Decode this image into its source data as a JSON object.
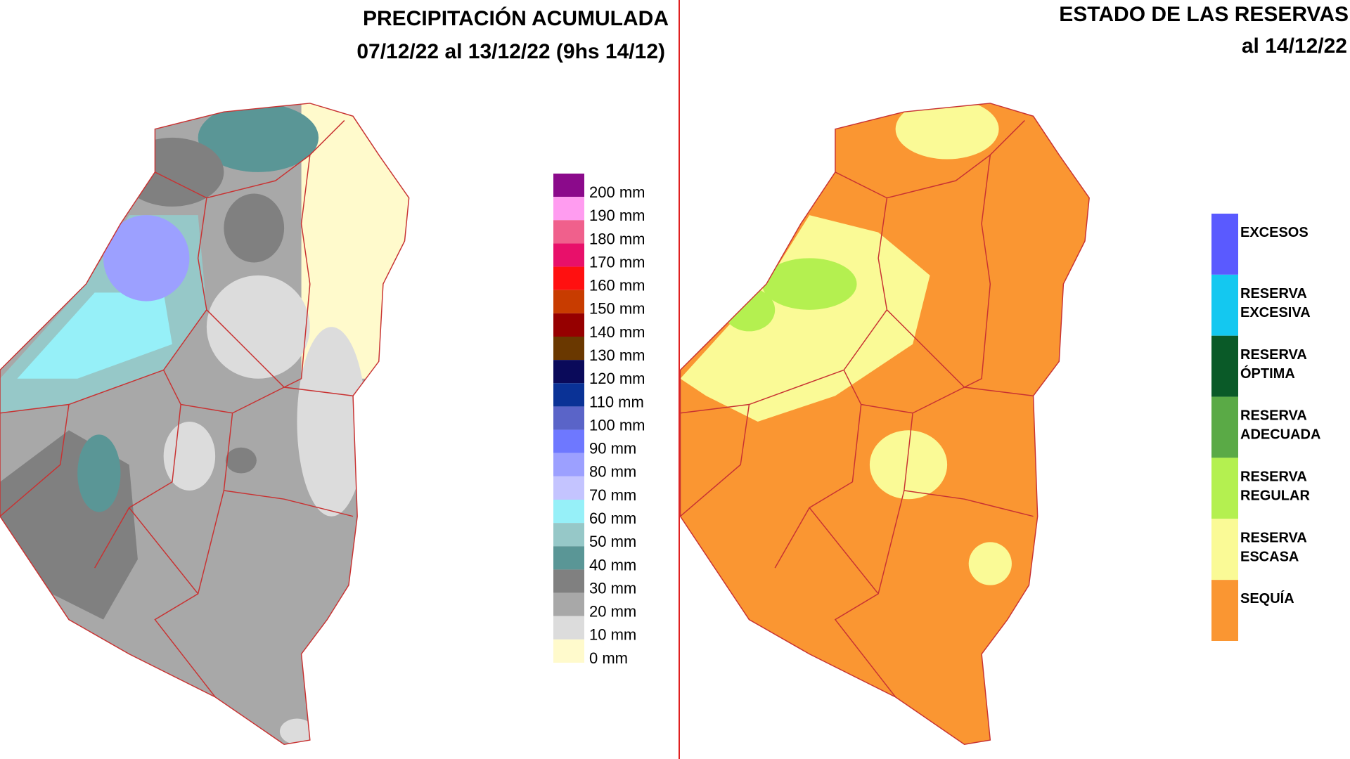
{
  "left": {
    "title": "PRECIPITACIÓN ACUMULADA",
    "subtitle": "07/12/22 al 13/12/22 (9hs 14/12)",
    "legend": [
      {
        "label": "200 mm",
        "color": "#8b0a8b"
      },
      {
        "label": "190 mm",
        "color": "#ff9cf0"
      },
      {
        "label": "180 mm",
        "color": "#f0608c"
      },
      {
        "label": "170 mm",
        "color": "#e8106a"
      },
      {
        "label": "160 mm",
        "color": "#ff1010"
      },
      {
        "label": "150 mm",
        "color": "#c83c00"
      },
      {
        "label": "140 mm",
        "color": "#960000"
      },
      {
        "label": "130 mm",
        "color": "#6a3800"
      },
      {
        "label": "120 mm",
        "color": "#0a0a5a"
      },
      {
        "label": "110 mm",
        "color": "#0a3296"
      },
      {
        "label": "100 mm",
        "color": "#5a64c8"
      },
      {
        "label": "90 mm",
        "color": "#6e78ff"
      },
      {
        "label": "80 mm",
        "color": "#9ca0ff"
      },
      {
        "label": "70 mm",
        "color": "#c4c4ff"
      },
      {
        "label": "60 mm",
        "color": "#96f0f8"
      },
      {
        "label": "50 mm",
        "color": "#96c8c8"
      },
      {
        "label": "40 mm",
        "color": "#5a9696"
      },
      {
        "label": "30 mm",
        "color": "#808080"
      },
      {
        "label": "20 mm",
        "color": "#a8a8a8"
      },
      {
        "label": "10 mm",
        "color": "#dcdcdc"
      },
      {
        "label": "0 mm",
        "color": "#fffacc"
      }
    ]
  },
  "right": {
    "title": "ESTADO DE LAS RESERVAS",
    "subtitle": "al 14/12/22",
    "legend": [
      {
        "lines": [
          "EXCESOS"
        ],
        "color": "#5a5aff"
      },
      {
        "lines": [
          "RESERVA",
          "EXCESIVA"
        ],
        "color": "#14c8f0"
      },
      {
        "lines": [
          "RESERVA",
          "ÓPTIMA"
        ],
        "color": "#0a5a28"
      },
      {
        "lines": [
          "RESERVA",
          "ADECUADA"
        ],
        "color": "#5aaa46"
      },
      {
        "lines": [
          "RESERVA",
          "REGULAR"
        ],
        "color": "#b4f050"
      },
      {
        "lines": [
          "RESERVA",
          "ESCASA"
        ],
        "color": "#fafa96"
      },
      {
        "lines": [
          "SEQUÍA"
        ],
        "color": "#fa9632"
      }
    ]
  }
}
